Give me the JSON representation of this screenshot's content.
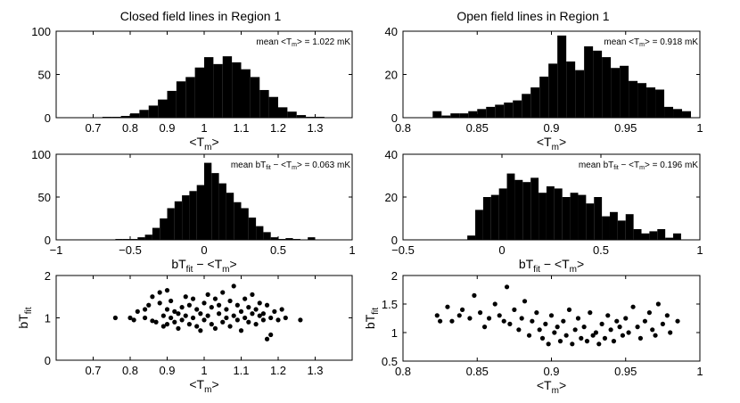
{
  "figure": {
    "titles": [
      "Closed field lines in Region 1",
      "Open field lines in Region 1"
    ]
  },
  "chart_data": [
    {
      "type": "bar",
      "panel": "closed-tm-hist",
      "title": "Closed field lines in Region 1",
      "xlabel": "<T_m>",
      "ylabel": "",
      "annotation": "mean <T_m> = 1.022 mK",
      "xlim": [
        0.6,
        1.4
      ],
      "ylim": [
        0,
        100
      ],
      "xticks": [
        "0.7",
        "0.8",
        "0.9",
        "1",
        "1.1",
        "1.2",
        "1.3"
      ],
      "yticks": [
        "0",
        "50",
        "100"
      ],
      "bin_edges": [
        0.725,
        0.75,
        0.775,
        0.8,
        0.825,
        0.85,
        0.875,
        0.9,
        0.925,
        0.95,
        0.975,
        1.0,
        1.025,
        1.05,
        1.075,
        1.1,
        1.125,
        1.15,
        1.175,
        1.2,
        1.225,
        1.25,
        1.275,
        1.3,
        1.325
      ],
      "values": [
        1,
        1,
        2,
        5,
        9,
        14,
        21,
        31,
        42,
        47,
        58,
        70,
        62,
        71,
        64,
        56,
        47,
        32,
        24,
        12,
        7,
        3,
        1,
        1
      ]
    },
    {
      "type": "bar",
      "panel": "open-tm-hist",
      "title": "Open field lines in Region 1",
      "xlabel": "<T_m>",
      "ylabel": "",
      "annotation": "mean <T_m> = 0.918 mK",
      "xlim": [
        0.8,
        1.0
      ],
      "ylim": [
        0,
        40
      ],
      "xticks": [
        "0.8",
        "0.85",
        "0.9",
        "0.95",
        "1"
      ],
      "yticks": [
        "0",
        "20",
        "40"
      ],
      "bin_edges": [
        0.82,
        0.826,
        0.832,
        0.838,
        0.844,
        0.85,
        0.856,
        0.862,
        0.868,
        0.874,
        0.88,
        0.886,
        0.892,
        0.898,
        0.904,
        0.91,
        0.916,
        0.922,
        0.928,
        0.934,
        0.94,
        0.946,
        0.952,
        0.958,
        0.964,
        0.97,
        0.976,
        0.982,
        0.988,
        0.994
      ],
      "values": [
        3,
        1,
        2,
        2,
        3,
        4,
        5,
        6,
        7,
        8,
        11,
        14,
        19,
        25,
        38,
        26,
        22,
        33,
        31,
        28,
        23,
        24,
        17,
        16,
        14,
        13,
        5,
        4,
        3
      ]
    },
    {
      "type": "bar",
      "panel": "closed-diff-hist",
      "xlabel": "bT_fit − <T_m>",
      "ylabel": "",
      "annotation": "mean bT_fit − <T_m> = 0.063 mK",
      "xlim": [
        -1,
        1
      ],
      "ylim": [
        0,
        100
      ],
      "xticks": [
        "−1",
        "−0.5",
        "0",
        "0.5",
        "1"
      ],
      "yticks": [
        "0",
        "50",
        "100"
      ],
      "bin_edges": [
        -0.6,
        -0.55,
        -0.5,
        -0.45,
        -0.4,
        -0.35,
        -0.3,
        -0.25,
        -0.2,
        -0.15,
        -0.1,
        -0.05,
        0.0,
        0.05,
        0.1,
        0.15,
        0.2,
        0.25,
        0.3,
        0.35,
        0.4,
        0.45,
        0.5,
        0.55,
        0.6,
        0.65,
        0.7,
        0.75
      ],
      "values": [
        1,
        1,
        1,
        3,
        6,
        14,
        25,
        37,
        45,
        52,
        57,
        64,
        90,
        78,
        66,
        55,
        44,
        37,
        26,
        16,
        9,
        3,
        1,
        2,
        1,
        0,
        3
      ]
    },
    {
      "type": "bar",
      "panel": "open-diff-hist",
      "xlabel": "bT_fit − <T_m>",
      "ylabel": "",
      "annotation": "mean bT_fit − <T_m> = 0.196 mK",
      "xlim": [
        -0.5,
        1
      ],
      "ylim": [
        0,
        40
      ],
      "xticks": [
        "−0.5",
        "0",
        "0.5",
        "1"
      ],
      "yticks": [
        "0",
        "20",
        "40"
      ],
      "bin_edges": [
        -0.175,
        -0.135,
        -0.095,
        -0.055,
        -0.015,
        0.025,
        0.065,
        0.105,
        0.145,
        0.185,
        0.225,
        0.265,
        0.305,
        0.345,
        0.385,
        0.425,
        0.465,
        0.505,
        0.545,
        0.585,
        0.625,
        0.665,
        0.705,
        0.745,
        0.785,
        0.825,
        0.865,
        0.905
      ],
      "values": [
        2,
        14,
        20,
        21,
        24,
        31,
        28,
        27,
        29,
        22,
        25,
        24,
        20,
        22,
        21,
        17,
        20,
        11,
        13,
        9,
        12,
        5,
        3,
        4,
        5,
        1,
        3
      ]
    },
    {
      "type": "scatter",
      "panel": "closed-scatter",
      "xlabel": "<T_m>",
      "ylabel": "bT_fit",
      "xlim": [
        0.6,
        1.4
      ],
      "ylim": [
        0,
        2
      ],
      "xticks": [
        "0.7",
        "0.8",
        "0.9",
        "1",
        "1.1",
        "1.2",
        "1.3"
      ],
      "yticks": [
        "0",
        "1",
        "2"
      ],
      "points": [
        [
          0.76,
          1.0
        ],
        [
          0.8,
          1.0
        ],
        [
          0.81,
          0.95
        ],
        [
          0.82,
          1.15
        ],
        [
          0.84,
          1.0
        ],
        [
          0.84,
          1.2
        ],
        [
          0.85,
          1.3
        ],
        [
          0.86,
          0.93
        ],
        [
          0.86,
          1.5
        ],
        [
          0.87,
          0.9
        ],
        [
          0.88,
          1.35
        ],
        [
          0.88,
          1.6
        ],
        [
          0.89,
          1.05
        ],
        [
          0.89,
          0.8
        ],
        [
          0.9,
          1.2
        ],
        [
          0.9,
          0.85
        ],
        [
          0.9,
          1.65
        ],
        [
          0.91,
          1.0
        ],
        [
          0.91,
          1.4
        ],
        [
          0.92,
          0.9
        ],
        [
          0.92,
          1.15
        ],
        [
          0.93,
          1.1
        ],
        [
          0.93,
          0.75
        ],
        [
          0.94,
          1.25
        ],
        [
          0.94,
          0.95
        ],
        [
          0.95,
          1.5
        ],
        [
          0.95,
          1.05
        ],
        [
          0.96,
          0.85
        ],
        [
          0.96,
          1.3
        ],
        [
          0.97,
          1.0
        ],
        [
          0.97,
          1.45
        ],
        [
          0.98,
          0.8
        ],
        [
          0.98,
          1.2
        ],
        [
          0.99,
          1.1
        ],
        [
          0.99,
          0.7
        ],
        [
          1.0,
          1.35
        ],
        [
          1.0,
          0.95
        ],
        [
          1.01,
          1.55
        ],
        [
          1.01,
          1.05
        ],
        [
          1.02,
          0.85
        ],
        [
          1.02,
          1.25
        ],
        [
          1.03,
          1.45
        ],
        [
          1.03,
          0.75
        ],
        [
          1.04,
          1.1
        ],
        [
          1.04,
          1.3
        ],
        [
          1.05,
          0.9
        ],
        [
          1.05,
          1.6
        ],
        [
          1.06,
          1.0
        ],
        [
          1.06,
          1.2
        ],
        [
          1.07,
          0.8
        ],
        [
          1.07,
          1.4
        ],
        [
          1.08,
          1.05
        ],
        [
          1.08,
          1.75
        ],
        [
          1.09,
          0.95
        ],
        [
          1.09,
          1.3
        ],
        [
          1.1,
          1.15
        ],
        [
          1.1,
          0.7
        ],
        [
          1.11,
          1.45
        ],
        [
          1.11,
          1.0
        ],
        [
          1.12,
          0.9
        ],
        [
          1.12,
          1.25
        ],
        [
          1.13,
          1.1
        ],
        [
          1.13,
          1.55
        ],
        [
          1.14,
          0.85
        ],
        [
          1.14,
          1.2
        ],
        [
          1.15,
          1.05
        ],
        [
          1.15,
          1.35
        ],
        [
          1.16,
          0.95
        ],
        [
          1.16,
          1.1
        ],
        [
          1.17,
          1.3
        ],
        [
          1.17,
          0.5
        ],
        [
          1.18,
          1.0
        ],
        [
          1.18,
          0.6
        ],
        [
          1.19,
          1.15
        ],
        [
          1.2,
          0.95
        ],
        [
          1.21,
          1.2
        ],
        [
          1.22,
          1.0
        ],
        [
          1.26,
          0.95
        ]
      ]
    },
    {
      "type": "scatter",
      "panel": "open-scatter",
      "xlabel": "<T_m>",
      "ylabel": "bT_fit",
      "xlim": [
        0.8,
        1.0
      ],
      "ylim": [
        0.5,
        2
      ],
      "xticks": [
        "0.8",
        "0.85",
        "0.9",
        "0.95",
        "1"
      ],
      "yticks": [
        "0.5",
        "1",
        "1.5",
        "2"
      ],
      "points": [
        [
          0.823,
          1.3
        ],
        [
          0.825,
          1.2
        ],
        [
          0.83,
          1.45
        ],
        [
          0.833,
          1.2
        ],
        [
          0.838,
          1.3
        ],
        [
          0.84,
          1.4
        ],
        [
          0.845,
          1.25
        ],
        [
          0.848,
          1.65
        ],
        [
          0.852,
          1.35
        ],
        [
          0.855,
          1.1
        ],
        [
          0.858,
          1.25
        ],
        [
          0.862,
          1.5
        ],
        [
          0.865,
          1.3
        ],
        [
          0.868,
          1.2
        ],
        [
          0.87,
          1.8
        ],
        [
          0.872,
          1.15
        ],
        [
          0.875,
          1.4
        ],
        [
          0.878,
          1.05
        ],
        [
          0.88,
          1.25
        ],
        [
          0.882,
          1.55
        ],
        [
          0.885,
          0.95
        ],
        [
          0.887,
          1.2
        ],
        [
          0.89,
          1.35
        ],
        [
          0.892,
          1.05
        ],
        [
          0.894,
          0.9
        ],
        [
          0.896,
          1.15
        ],
        [
          0.898,
          0.8
        ],
        [
          0.9,
          1.3
        ],
        [
          0.902,
          1.0
        ],
        [
          0.904,
          1.1
        ],
        [
          0.906,
          0.85
        ],
        [
          0.908,
          1.2
        ],
        [
          0.91,
          0.95
        ],
        [
          0.912,
          1.4
        ],
        [
          0.914,
          0.8
        ],
        [
          0.916,
          1.05
        ],
        [
          0.918,
          1.25
        ],
        [
          0.92,
          0.9
        ],
        [
          0.922,
          1.1
        ],
        [
          0.924,
          0.85
        ],
        [
          0.926,
          1.35
        ],
        [
          0.928,
          0.95
        ],
        [
          0.93,
          1.0
        ],
        [
          0.932,
          0.8
        ],
        [
          0.934,
          1.15
        ],
        [
          0.936,
          0.9
        ],
        [
          0.938,
          1.3
        ],
        [
          0.94,
          1.05
        ],
        [
          0.942,
          0.85
        ],
        [
          0.944,
          1.2
        ],
        [
          0.946,
          1.1
        ],
        [
          0.948,
          0.95
        ],
        [
          0.95,
          1.25
        ],
        [
          0.952,
          1.0
        ],
        [
          0.955,
          1.45
        ],
        [
          0.958,
          1.1
        ],
        [
          0.96,
          0.9
        ],
        [
          0.963,
          1.2
        ],
        [
          0.966,
          1.35
        ],
        [
          0.968,
          1.05
        ],
        [
          0.97,
          0.95
        ],
        [
          0.972,
          1.5
        ],
        [
          0.975,
          1.15
        ],
        [
          0.978,
          1.3
        ],
        [
          0.98,
          1.0
        ],
        [
          0.985,
          1.2
        ]
      ]
    }
  ]
}
